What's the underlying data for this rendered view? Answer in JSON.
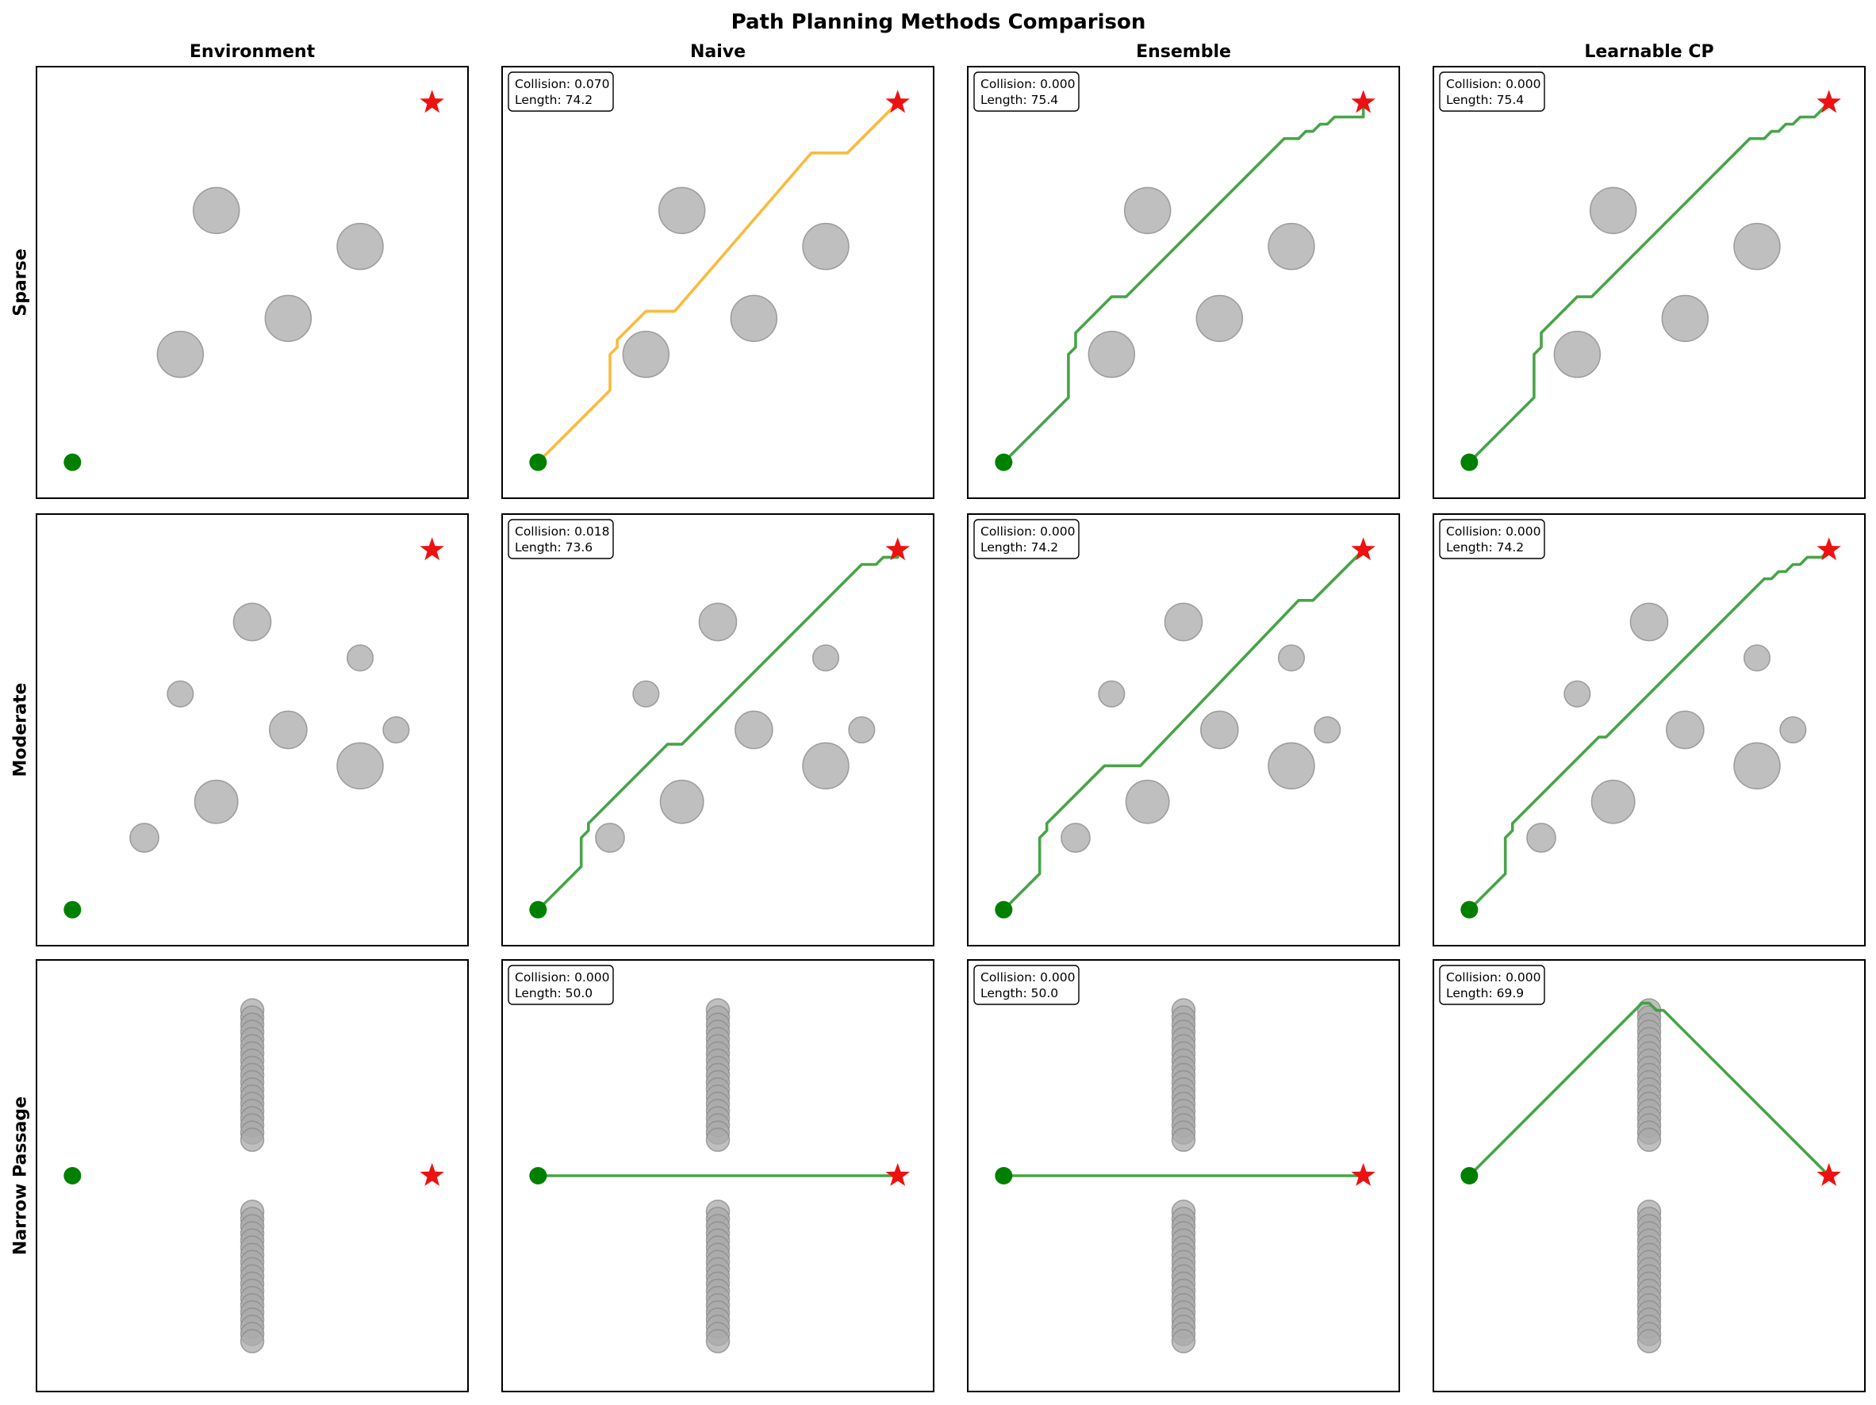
{
  "title": "Path Planning Methods Comparison",
  "columns": [
    "Environment",
    "Naive",
    "Ensemble",
    "Learnable CP"
  ],
  "rows": [
    "Sparse",
    "Moderate",
    "Narrow Passage"
  ],
  "colors": {
    "obstacle": "#aaaaaa",
    "start": "#008000",
    "goal": "#ee1111",
    "path_collision": "#f9b734",
    "path_safe": "#3d9f3d"
  },
  "chart_data": {
    "type": "diagram",
    "xlim": [
      0,
      60
    ],
    "ylim": [
      0,
      60
    ],
    "scenarios": [
      {
        "name": "Sparse",
        "start": [
          5,
          5
        ],
        "goal": [
          55,
          55
        ],
        "obstacles": [
          [
            25,
            40,
            3.2
          ],
          [
            45,
            35,
            3.2
          ],
          [
            35,
            25,
            3.2
          ],
          [
            20,
            20,
            3.2
          ]
        ],
        "methods": [
          {
            "name": "Naive",
            "collision": "0.070",
            "length": "74.2",
            "collides": true,
            "path": [
              [
                5,
                5
              ],
              [
                15,
                15
              ],
              [
                15,
                20
              ],
              [
                16,
                21
              ],
              [
                16,
                22
              ],
              [
                20,
                26
              ],
              [
                24,
                26
              ],
              [
                43,
                48
              ],
              [
                48,
                48
              ],
              [
                55,
                55
              ]
            ]
          },
          {
            "name": "Ensemble",
            "collision": "0.000",
            "length": "75.4",
            "collides": false,
            "path": [
              [
                5,
                5
              ],
              [
                14,
                14
              ],
              [
                14,
                20
              ],
              [
                15,
                21
              ],
              [
                15,
                23
              ],
              [
                20,
                28
              ],
              [
                22,
                28
              ],
              [
                44,
                50
              ],
              [
                46,
                50
              ],
              [
                47,
                51
              ],
              [
                48,
                51
              ],
              [
                49,
                52
              ],
              [
                50,
                52
              ],
              [
                51,
                53
              ],
              [
                55,
                53
              ],
              [
                55,
                55
              ]
            ]
          },
          {
            "name": "Learnable CP",
            "collision": "0.000",
            "length": "75.4",
            "collides": false,
            "path": [
              [
                5,
                5
              ],
              [
                14,
                14
              ],
              [
                14,
                20
              ],
              [
                15,
                21
              ],
              [
                15,
                23
              ],
              [
                20,
                28
              ],
              [
                22,
                28
              ],
              [
                44,
                50
              ],
              [
                46,
                50
              ],
              [
                47,
                51
              ],
              [
                48,
                51
              ],
              [
                49,
                52
              ],
              [
                50,
                52
              ],
              [
                51,
                53
              ],
              [
                53,
                53
              ],
              [
                55,
                55
              ]
            ]
          }
        ]
      },
      {
        "name": "Moderate",
        "start": [
          5,
          5
        ],
        "goal": [
          55,
          55
        ],
        "obstacles": [
          [
            30,
            45,
            2.6
          ],
          [
            20,
            35,
            1.8
          ],
          [
            35,
            30,
            2.6
          ],
          [
            45,
            25,
            3.2
          ],
          [
            25,
            20,
            3.0
          ],
          [
            15,
            15,
            2.0
          ],
          [
            45,
            40,
            1.8
          ],
          [
            50,
            30,
            1.8
          ]
        ],
        "methods": [
          {
            "name": "Naive",
            "collision": "0.018",
            "length": "73.6",
            "collides": false,
            "path": [
              [
                5,
                5
              ],
              [
                11,
                11
              ],
              [
                11,
                15
              ],
              [
                12,
                16
              ],
              [
                12,
                17
              ],
              [
                23,
                28
              ],
              [
                25,
                28
              ],
              [
                50,
                53
              ],
              [
                52,
                53
              ],
              [
                53,
                54
              ],
              [
                55,
                54
              ],
              [
                55,
                55
              ]
            ]
          },
          {
            "name": "Ensemble",
            "collision": "0.000",
            "length": "74.2",
            "collides": false,
            "path": [
              [
                5,
                5
              ],
              [
                10,
                10
              ],
              [
                10,
                15
              ],
              [
                11,
                16
              ],
              [
                11,
                17
              ],
              [
                19,
                25
              ],
              [
                24,
                25
              ],
              [
                46,
                48
              ],
              [
                48,
                48
              ],
              [
                55,
                55
              ]
            ]
          },
          {
            "name": "Learnable CP",
            "collision": "0.000",
            "length": "74.2",
            "collides": false,
            "path": [
              [
                5,
                5
              ],
              [
                10,
                10
              ],
              [
                10,
                15
              ],
              [
                11,
                16
              ],
              [
                11,
                17
              ],
              [
                23,
                29
              ],
              [
                24,
                29
              ],
              [
                46,
                51
              ],
              [
                47,
                51
              ],
              [
                48,
                52
              ],
              [
                49,
                52
              ],
              [
                50,
                53
              ],
              [
                51,
                53
              ],
              [
                52,
                54
              ],
              [
                54,
                54
              ],
              [
                55,
                55
              ]
            ]
          }
        ]
      },
      {
        "name": "Narrow Passage",
        "start": [
          5,
          30
        ],
        "goal": [
          55,
          30
        ],
        "obstacles": [
          [
            30,
            53,
            1.6
          ],
          [
            30,
            52,
            1.6
          ],
          [
            30,
            51,
            1.6
          ],
          [
            30,
            50,
            1.6
          ],
          [
            30,
            49,
            1.6
          ],
          [
            30,
            48,
            1.6
          ],
          [
            30,
            47,
            1.6
          ],
          [
            30,
            46,
            1.6
          ],
          [
            30,
            45,
            1.6
          ],
          [
            30,
            44,
            1.6
          ],
          [
            30,
            43,
            1.6
          ],
          [
            30,
            42,
            1.6
          ],
          [
            30,
            41,
            1.6
          ],
          [
            30,
            40,
            1.6
          ],
          [
            30,
            39,
            1.6
          ],
          [
            30,
            38,
            1.6
          ],
          [
            30,
            37,
            1.6
          ],
          [
            30,
            36,
            1.6
          ],
          [
            30,
            35,
            1.6
          ],
          [
            30,
            25,
            1.6
          ],
          [
            30,
            24,
            1.6
          ],
          [
            30,
            23,
            1.6
          ],
          [
            30,
            22,
            1.6
          ],
          [
            30,
            21,
            1.6
          ],
          [
            30,
            20,
            1.6
          ],
          [
            30,
            19,
            1.6
          ],
          [
            30,
            18,
            1.6
          ],
          [
            30,
            17,
            1.6
          ],
          [
            30,
            16,
            1.6
          ],
          [
            30,
            15,
            1.6
          ],
          [
            30,
            14,
            1.6
          ],
          [
            30,
            13,
            1.6
          ],
          [
            30,
            12,
            1.6
          ],
          [
            30,
            11,
            1.6
          ],
          [
            30,
            10,
            1.6
          ],
          [
            30,
            9,
            1.6
          ],
          [
            30,
            8,
            1.6
          ],
          [
            30,
            7,
            1.6
          ]
        ],
        "methods": [
          {
            "name": "Naive",
            "collision": "0.000",
            "length": "50.0",
            "collides": false,
            "path": [
              [
                5,
                30
              ],
              [
                55,
                30
              ]
            ]
          },
          {
            "name": "Ensemble",
            "collision": "0.000",
            "length": "50.0",
            "collides": false,
            "path": [
              [
                5,
                30
              ],
              [
                55,
                30
              ]
            ]
          },
          {
            "name": "Learnable CP",
            "collision": "0.000",
            "length": "69.9",
            "collides": false,
            "path": [
              [
                5,
                30
              ],
              [
                29,
                54
              ],
              [
                30,
                54
              ],
              [
                31,
                53
              ],
              [
                32,
                53
              ],
              [
                55,
                30
              ]
            ]
          }
        ]
      }
    ]
  }
}
